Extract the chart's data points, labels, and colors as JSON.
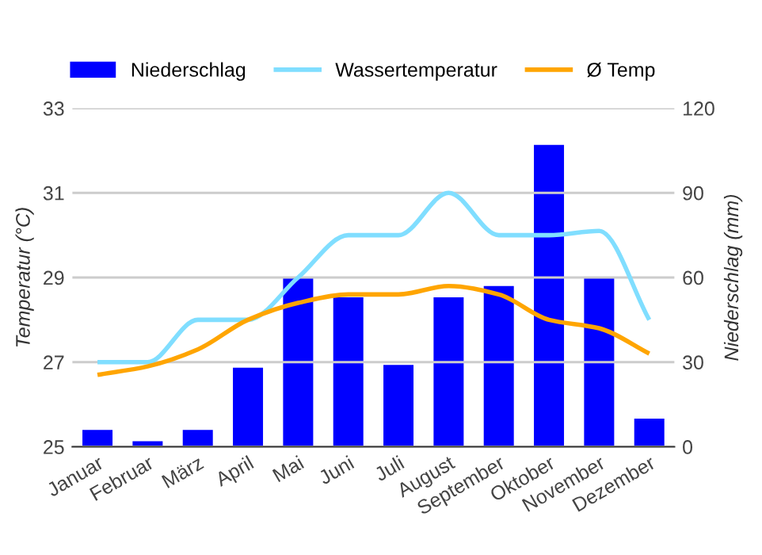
{
  "chart_data": {
    "type": "bar",
    "ylabel": "Temperatur (°C)",
    "y2label": "Niederschlag (mm)",
    "categories": [
      "Januar",
      "Februar",
      "März",
      "April",
      "Mai",
      "Juni",
      "Juli",
      "August",
      "September",
      "Oktober",
      "November",
      "Dezember"
    ],
    "series": [
      {
        "name": "Niederschlag",
        "axis": "y2",
        "color": "#0000ff",
        "values": [
          6,
          2,
          6,
          28,
          60,
          53,
          29,
          53,
          57,
          107,
          60,
          10
        ]
      },
      {
        "name": "Wassertemperatur",
        "type": "line",
        "axis": "y",
        "color": "#80deff",
        "values": [
          27.0,
          27.0,
          28.0,
          28.0,
          29.0,
          30.0,
          30.0,
          31.0,
          30.0,
          30.0,
          30.1,
          28.0
        ]
      },
      {
        "name": "Ø Temp",
        "type": "line",
        "axis": "y",
        "color": "#ffa500",
        "values": [
          26.7,
          26.9,
          27.3,
          28.0,
          28.4,
          28.6,
          28.6,
          28.8,
          28.6,
          28.0,
          27.8,
          27.2
        ]
      }
    ],
    "ylim": [
      25,
      33
    ],
    "yticks": [
      25,
      27,
      29,
      31,
      33
    ],
    "y2lim": [
      0,
      120
    ],
    "y2ticks": [
      0,
      30,
      60,
      90,
      120
    ],
    "grid": "y",
    "legend": "top left",
    "marker": "none",
    "line_style": "solid"
  }
}
